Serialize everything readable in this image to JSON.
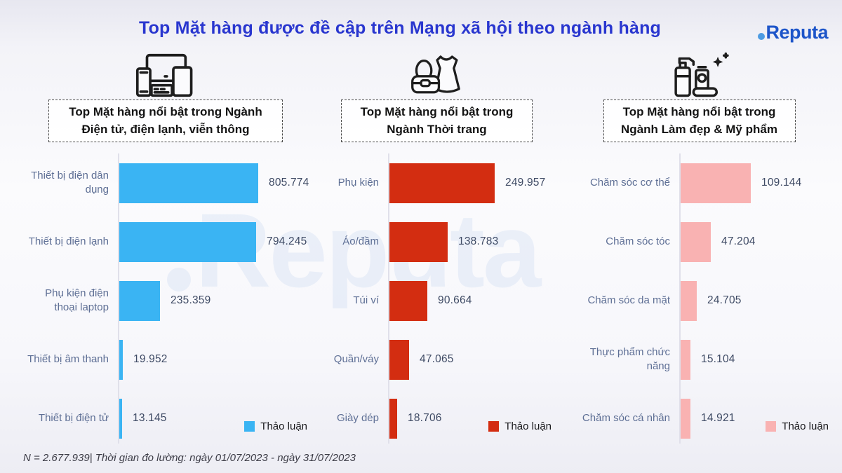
{
  "header": {
    "title": "Top Mặt hàng được đề cập trên Mạng xã hội theo ngành hàng",
    "logo_text": "Reputa"
  },
  "watermark": {
    "text": "Reputa"
  },
  "footer": {
    "note": "N = 2.677.939| Thời gian đo lường: ngày 01/07/2023 - ngày 31/07/2023"
  },
  "chart_data": [
    {
      "type": "bar",
      "orientation": "horizontal",
      "icon": "devices-icon",
      "header": "Top Mặt hàng nổi bật trong Ngành\nĐiện tử, điện lạnh, viễn thông",
      "categories": [
        "Thiết bị điện dân dụng",
        "Thiết bị điện lạnh",
        "Phụ kiện điện thoại laptop",
        "Thiết bị âm thanh",
        "Thiết bị điện tử"
      ],
      "values": [
        805774,
        794245,
        235359,
        19952,
        13145
      ],
      "value_labels": [
        "805.774",
        "794.245",
        "235.359",
        "19.952",
        "13.145"
      ],
      "legend": "Thảo luận",
      "color": "#3ab4f3",
      "xlim": [
        0,
        805774
      ],
      "grid": false,
      "legend_position": "bottom-right"
    },
    {
      "type": "bar",
      "orientation": "horizontal",
      "icon": "fashion-icon",
      "header": "Top Mặt hàng nổi bật trong\nNgành Thời trang",
      "categories": [
        "Phụ kiện",
        "Áo/đầm",
        "Túi ví",
        "Quần/váy",
        "Giày dép"
      ],
      "values": [
        249957,
        138783,
        90664,
        47065,
        18706
      ],
      "value_labels": [
        "249.957",
        "138.783",
        "90.664",
        "47.065",
        "18.706"
      ],
      "legend": "Thảo luận",
      "color": "#d32d11",
      "xlim": [
        0,
        249957
      ],
      "grid": false,
      "legend_position": "bottom-right"
    },
    {
      "type": "bar",
      "orientation": "horizontal",
      "icon": "cosmetics-icon",
      "header": "Top Mặt hàng nổi bật trong\nNgành Làm đẹp & Mỹ phẩm",
      "categories": [
        "Chăm sóc cơ thể",
        "Chăm sóc tóc",
        "Chăm sóc da mặt",
        "Thực phẩm chức năng",
        "Chăm sóc cá nhân"
      ],
      "values": [
        109144,
        47204,
        24705,
        15104,
        14921
      ],
      "value_labels": [
        "109.144",
        "47.204",
        "24.705",
        "15.104",
        "14.921"
      ],
      "legend": "Thảo luận",
      "color": "#f9b2b2",
      "xlim": [
        0,
        109144
      ],
      "grid": false,
      "legend_position": "bottom-right"
    }
  ]
}
